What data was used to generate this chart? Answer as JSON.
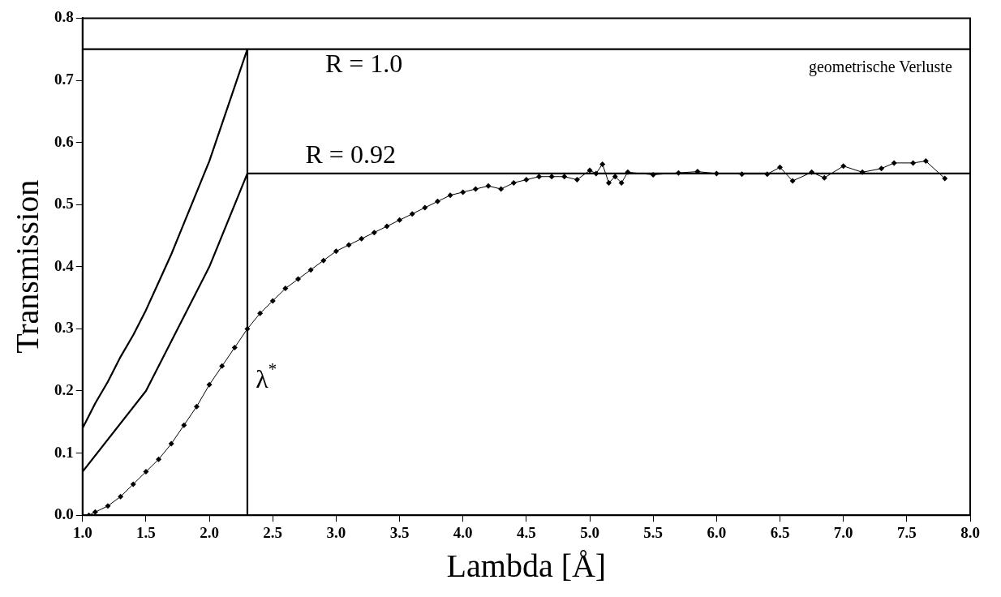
{
  "chart_data": {
    "type": "line",
    "xlabel": "Lambda [Å]",
    "ylabel": "Transmission",
    "xlim": [
      1,
      8
    ],
    "ylim": [
      0,
      0.8
    ],
    "xticks": [
      {
        "value": 1,
        "label": "1.0"
      },
      {
        "value": 1.5,
        "label": "1.5"
      },
      {
        "value": 2,
        "label": "2.0"
      },
      {
        "value": 2.5,
        "label": "2.5"
      },
      {
        "value": 3,
        "label": "3.0"
      },
      {
        "value": 3.5,
        "label": "3.5"
      },
      {
        "value": 4,
        "label": "4.0"
      },
      {
        "value": 4.5,
        "label": "4.5"
      },
      {
        "value": 5,
        "label": "5.0"
      },
      {
        "value": 5.5,
        "label": "5.5"
      },
      {
        "value": 6,
        "label": "6.0"
      },
      {
        "value": 6.5,
        "label": "6.5"
      },
      {
        "value": 7,
        "label": "7.0"
      },
      {
        "value": 7.5,
        "label": "7.5"
      },
      {
        "value": 8,
        "label": "8.0"
      }
    ],
    "yticks": [
      {
        "value": 0,
        "label": "0.0"
      },
      0.1,
      0.2,
      0.3,
      0.4,
      0.5,
      0.6,
      0.7,
      0.8
    ],
    "grid": false,
    "legend": false,
    "line_style": "solid",
    "series": [
      {
        "type": "line",
        "color": "#000000",
        "marker": "none",
        "x": [
          1.0,
          1.1,
          1.2,
          1.3,
          1.4,
          1.5,
          1.6,
          1.7,
          1.8,
          1.9,
          2.0,
          2.1,
          2.2,
          2.3
        ],
        "values": [
          0.14,
          0.18,
          0.215,
          0.255,
          0.29,
          0.33,
          0.375,
          0.42,
          0.47,
          0.52,
          0.57,
          0.63,
          0.69,
          0.75
        ]
      },
      {
        "type": "line",
        "color": "#000000",
        "marker": "none",
        "x": [
          1.0,
          1.5,
          2.0,
          2.3
        ],
        "values": [
          0.07,
          0.2,
          0.4,
          0.55
        ]
      },
      {
        "type": "line",
        "color": "#000000",
        "marker": "diamond",
        "x": [
          1.05,
          1.1,
          1.2,
          1.3,
          1.4,
          1.5,
          1.6,
          1.7,
          1.8,
          1.9,
          2.0,
          2.1,
          2.2,
          2.3,
          2.4,
          2.5,
          2.6,
          2.7,
          2.8,
          2.9,
          3.0,
          3.1,
          3.2,
          3.3,
          3.4,
          3.5,
          3.6,
          3.7,
          3.8,
          3.9,
          4.0,
          4.1,
          4.2,
          4.3,
          4.4,
          4.5,
          4.6,
          4.7,
          4.8,
          4.9,
          5.0,
          5.05,
          5.1,
          5.15,
          5.2,
          5.25,
          5.3,
          5.5,
          5.7,
          5.85,
          6.0,
          6.2,
          6.4,
          6.5,
          6.6,
          6.75,
          6.85,
          7.0,
          7.15,
          7.3,
          7.4,
          7.55,
          7.65,
          7.8
        ],
        "values": [
          0.0,
          0.005,
          0.015,
          0.03,
          0.05,
          0.07,
          0.09,
          0.115,
          0.145,
          0.175,
          0.21,
          0.24,
          0.27,
          0.3,
          0.325,
          0.345,
          0.365,
          0.38,
          0.395,
          0.41,
          0.425,
          0.435,
          0.445,
          0.455,
          0.465,
          0.475,
          0.485,
          0.495,
          0.505,
          0.515,
          0.52,
          0.525,
          0.53,
          0.525,
          0.535,
          0.54,
          0.545,
          0.545,
          0.545,
          0.54,
          0.555,
          0.55,
          0.565,
          0.535,
          0.545,
          0.535,
          0.552,
          0.548,
          0.551,
          0.553,
          0.55,
          0.549,
          0.549,
          0.56,
          0.538,
          0.552,
          0.543,
          0.562,
          0.552,
          0.558,
          0.567,
          0.567,
          0.57,
          0.542
        ]
      },
      {
        "type": "line",
        "color": "#000000",
        "marker": "none",
        "x": [
          1,
          8
        ],
        "values": [
          0.75,
          0.75
        ]
      },
      {
        "type": "line",
        "color": "#000000",
        "marker": "none",
        "x": [
          2.3,
          8
        ],
        "values": [
          0.55,
          0.55
        ]
      },
      {
        "type": "line",
        "color": "#000000",
        "marker": "none",
        "x": [
          2.3,
          2.3
        ],
        "values": [
          0,
          0.75
        ]
      }
    ],
    "annotations": [
      "R = 1.0",
      "R = 0.92",
      "λ$^{*}$",
      "geometrische Verluste"
    ]
  }
}
